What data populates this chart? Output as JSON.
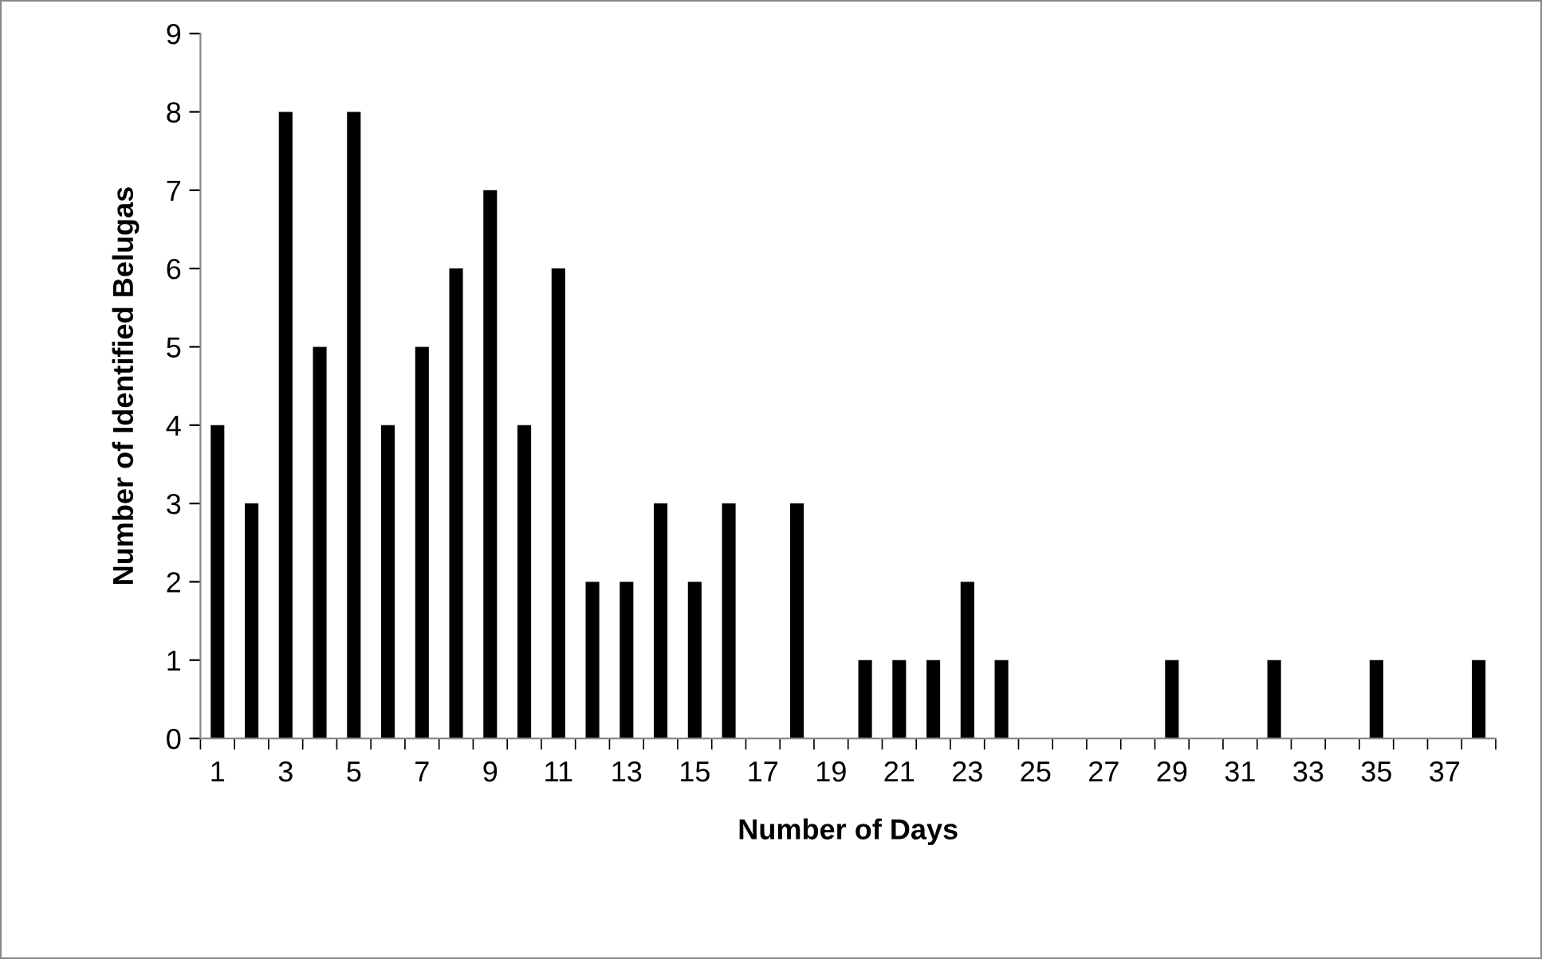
{
  "chart_data": {
    "type": "bar",
    "xlabel": "Number of Days",
    "ylabel": "Number of Identified Belugas",
    "categories": [
      "1",
      null,
      "3",
      null,
      "5",
      null,
      "7",
      null,
      "9",
      null,
      "11",
      null,
      "13",
      null,
      "15",
      null,
      "17",
      null,
      "19",
      null,
      "21",
      null,
      "23",
      null,
      "25",
      null,
      "27",
      null,
      "29",
      null,
      "31",
      null,
      "33",
      null,
      "35",
      null,
      "37",
      null
    ],
    "values": [
      4,
      3,
      8,
      5,
      8,
      4,
      5,
      6,
      7,
      4,
      6,
      2,
      2,
      3,
      2,
      3,
      0,
      3,
      0,
      1,
      1,
      1,
      2,
      1,
      0,
      0,
      0,
      0,
      1,
      0,
      0,
      1,
      0,
      0,
      1,
      0,
      0,
      1
    ],
    "color": "#000000",
    "ylim": [
      0,
      9
    ],
    "yticks": [
      0,
      1,
      2,
      3,
      4,
      5,
      6,
      7,
      8,
      9
    ],
    "grid": false,
    "legend": false
  }
}
